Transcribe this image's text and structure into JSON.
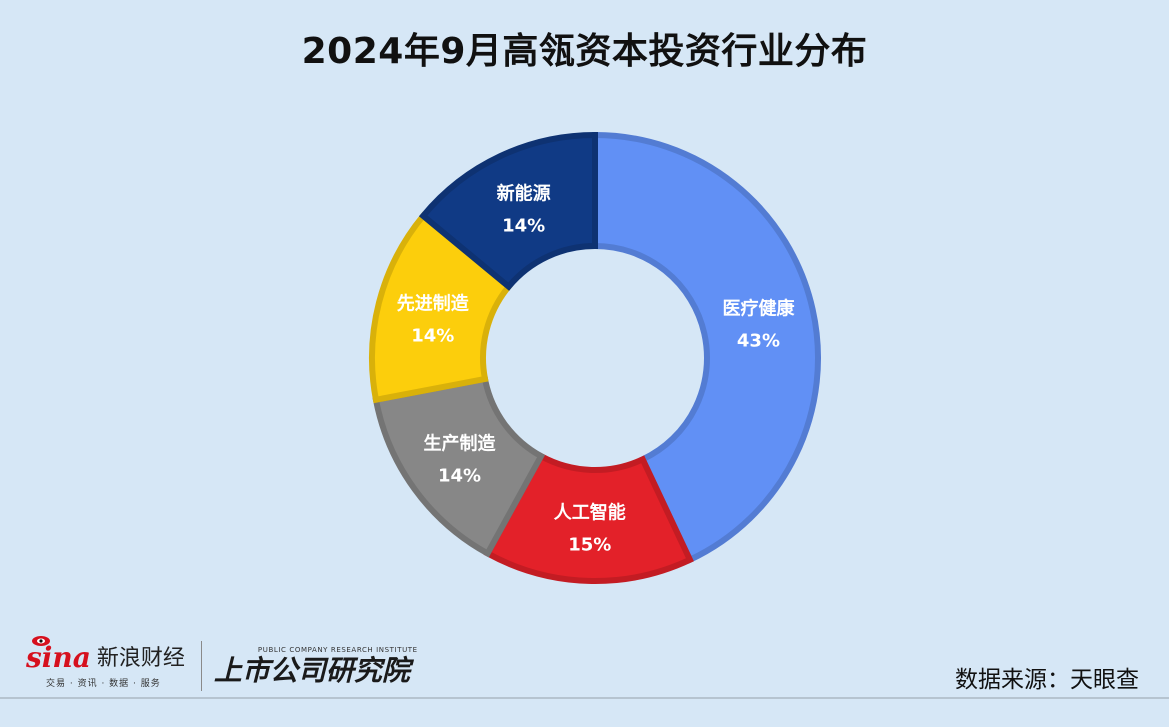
{
  "chart_data": {
    "type": "pie",
    "title": "2024年9月高瓴资本投资行业分布",
    "donut": true,
    "legend": "none",
    "slices": [
      {
        "label": "医疗健康",
        "value": 43,
        "value_label": "43%",
        "color": "#6190f5"
      },
      {
        "label": "人工智能",
        "value": 15,
        "value_label": "15%",
        "color": "#e32129"
      },
      {
        "label": "生产制造",
        "value": 14,
        "value_label": "14%",
        "color": "#878787"
      },
      {
        "label": "先进制造",
        "value": 14,
        "value_label": "14%",
        "color": "#fcce0c"
      },
      {
        "label": "新能源",
        "value": 14,
        "value_label": "14%",
        "color": "#103a85"
      }
    ]
  },
  "footer": {
    "source": "数据来源：天眼查",
    "sina_logo_word": "sina",
    "sina_logo_cn": "新浪财经",
    "sina_logo_sub": "交易 · 资讯 · 数据 · 服务",
    "institute_logo_en": "PUBLIC COMPANY RESEARCH INSTITUTE",
    "institute_logo_cn": "上市公司研究院"
  },
  "colors": {
    "background": "#d6e7f6",
    "sina_red": "#d6101e"
  }
}
